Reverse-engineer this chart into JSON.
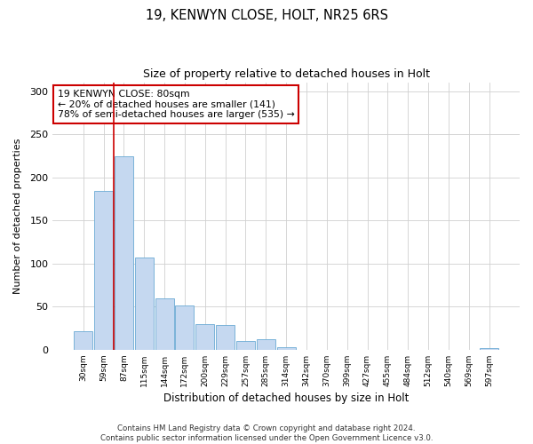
{
  "title1": "19, KENWYN CLOSE, HOLT, NR25 6RS",
  "title2": "Size of property relative to detached houses in Holt",
  "xlabel": "Distribution of detached houses by size in Holt",
  "ylabel": "Number of detached properties",
  "bar_labels": [
    "30sqm",
    "59sqm",
    "87sqm",
    "115sqm",
    "144sqm",
    "172sqm",
    "200sqm",
    "229sqm",
    "257sqm",
    "285sqm",
    "314sqm",
    "342sqm",
    "370sqm",
    "399sqm",
    "427sqm",
    "455sqm",
    "484sqm",
    "512sqm",
    "540sqm",
    "569sqm",
    "597sqm"
  ],
  "bar_values": [
    21,
    184,
    224,
    107,
    60,
    51,
    30,
    29,
    10,
    12,
    3,
    0,
    0,
    0,
    0,
    0,
    0,
    0,
    0,
    0,
    2
  ],
  "bar_color": "#c5d8f0",
  "bar_edge_color": "#6aaad4",
  "grid_color": "#d0d0d0",
  "vline_x": 1.5,
  "vline_color": "#cc0000",
  "annotation_text": "19 KENWYN CLOSE: 80sqm\n← 20% of detached houses are smaller (141)\n78% of semi-detached houses are larger (535) →",
  "annotation_box_color": "#ffffff",
  "annotation_edge_color": "#cc0000",
  "ylim": [
    0,
    310
  ],
  "yticks": [
    0,
    50,
    100,
    150,
    200,
    250,
    300
  ],
  "footer": "Contains HM Land Registry data © Crown copyright and database right 2024.\nContains public sector information licensed under the Open Government Licence v3.0.",
  "bg_color": "#ffffff"
}
